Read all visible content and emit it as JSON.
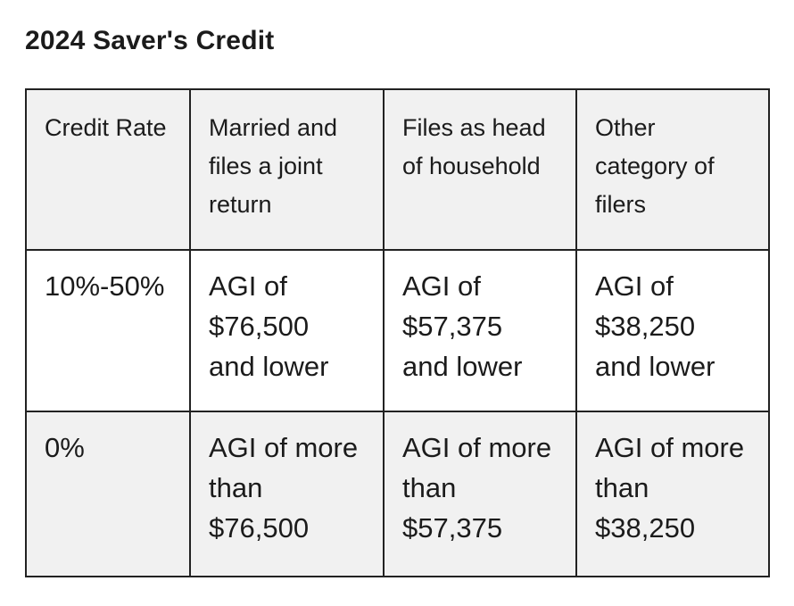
{
  "page": {
    "title": "2024 Saver's Credit"
  },
  "colors": {
    "background": "#ffffff",
    "text": "#1b1b1b",
    "row_stripe": "#f1f1f1",
    "border": "#222222"
  },
  "table": {
    "header": {
      "c1": [
        "Credit Rate"
      ],
      "c2": [
        "Married and",
        "files a joint",
        "return"
      ],
      "c3": [
        "Files as head",
        "of household"
      ],
      "c4": [
        "Other",
        "category of",
        "filers"
      ]
    },
    "row1": {
      "c1": [
        "10%-50%"
      ],
      "c2": [
        "AGI of",
        "$76,500",
        "and lower"
      ],
      "c3": [
        "AGI of",
        "$57,375",
        "and lower"
      ],
      "c4": [
        "AGI of",
        "$38,250",
        "and lower"
      ]
    },
    "row2": {
      "c1": [
        "0%"
      ],
      "c2": [
        "AGI of more",
        "than",
        "$76,500"
      ],
      "c3": [
        "AGI of more",
        "than",
        "$57,375"
      ],
      "c4": [
        "AGI of more",
        "than",
        "$38,250"
      ]
    }
  }
}
